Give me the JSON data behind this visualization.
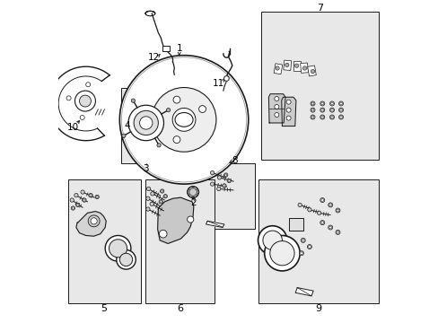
{
  "background_color": "#ffffff",
  "fig_width": 4.89,
  "fig_height": 3.6,
  "dpi": 100,
  "line_color": "#1a1a1a",
  "box_fill": "#e8e8e8",
  "text_color": "#000000",
  "font_size": 7.5,
  "boxes": {
    "3": [
      0.195,
      0.495,
      0.155,
      0.235
    ],
    "7": [
      0.63,
      0.505,
      0.365,
      0.46
    ],
    "8": [
      0.455,
      0.29,
      0.155,
      0.205
    ],
    "5": [
      0.03,
      0.06,
      0.225,
      0.385
    ],
    "6": [
      0.27,
      0.06,
      0.215,
      0.385
    ],
    "9": [
      0.62,
      0.06,
      0.375,
      0.385
    ]
  },
  "label_positions": {
    "10": [
      0.048,
      0.098,
      0.082,
      0.135
    ],
    "12": [
      0.276,
      0.81,
      0.315,
      0.83
    ],
    "1": [
      0.398,
      0.79,
      0.398,
      0.755
    ],
    "11": [
      0.495,
      0.72,
      0.53,
      0.738
    ],
    "4": [
      0.218,
      0.582,
      0.245,
      0.6
    ],
    "2": [
      0.422,
      0.39,
      0.422,
      0.41
    ],
    "8": [
      0.53,
      0.495,
      0.53,
      0.5
    ],
    "7": [
      0.813,
      0.978,
      0.813,
      0.97
    ],
    "3": [
      0.272,
      0.488,
      0.272,
      0.495
    ],
    "5": [
      0.142,
      0.048,
      null,
      null
    ],
    "6": [
      0.378,
      0.048,
      null,
      null
    ],
    "9": [
      0.807,
      0.048,
      null,
      null
    ]
  }
}
